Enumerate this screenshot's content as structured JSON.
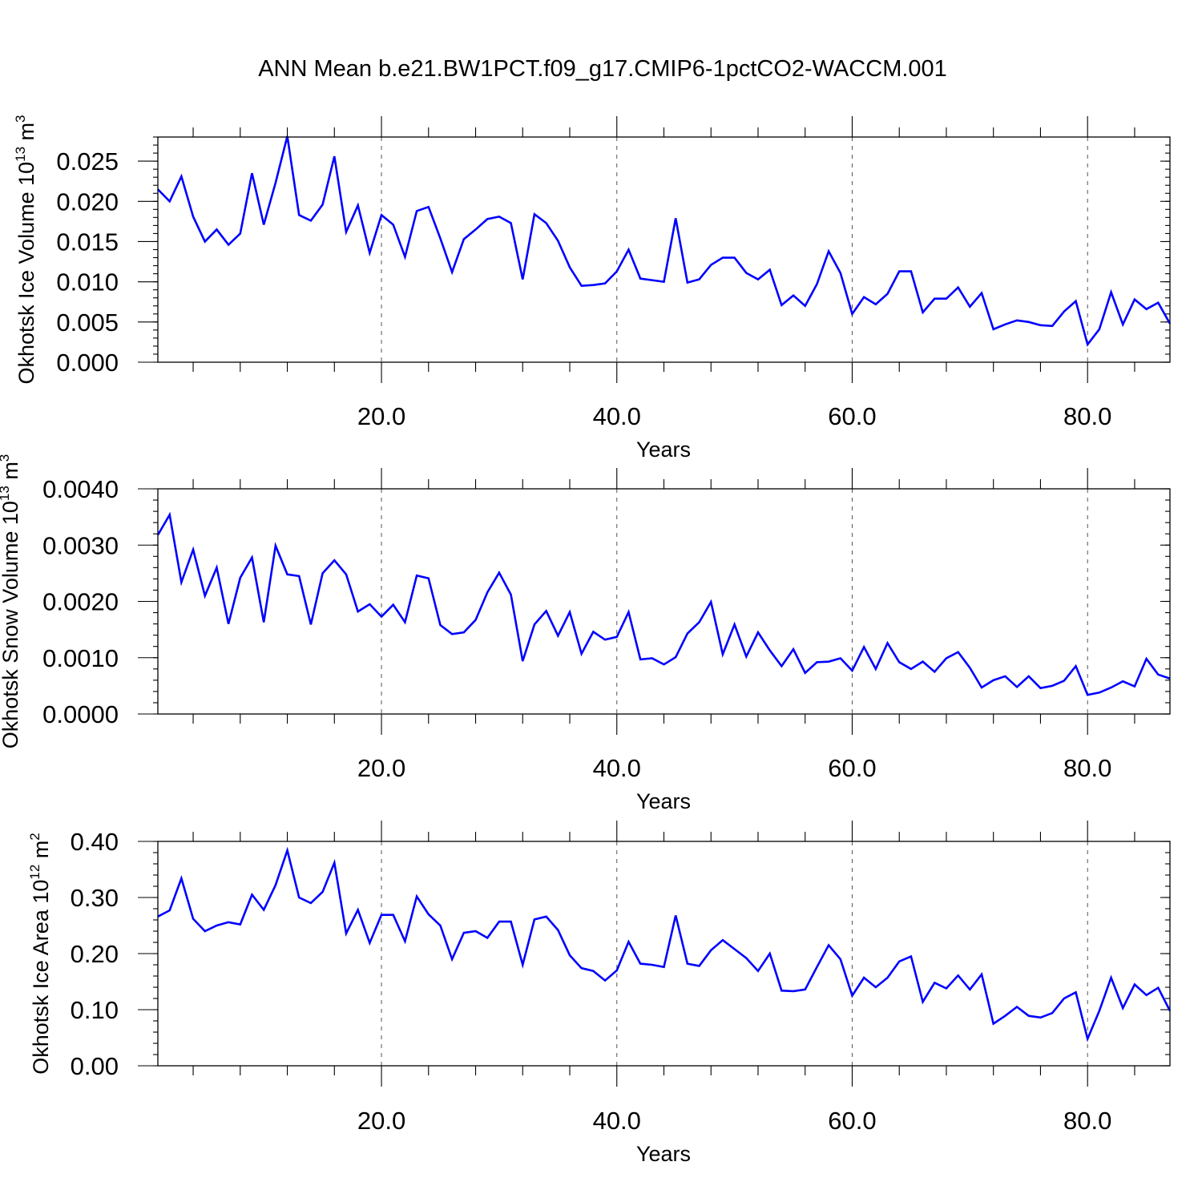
{
  "title": "ANN Mean b.e21.BW1PCT.f09_g17.CMIP6-1pctCO2-WACCM.001",
  "colors": {
    "series": "#0000ff",
    "axes": "#000000",
    "grid": "#555555"
  },
  "chart_data": [
    {
      "type": "line",
      "ylabel_main": "Okhotsk Ice Volume 10",
      "ylabel_exp": "13",
      "ylabel_unit": " m",
      "ylabel_unit_exp": "3",
      "xlabel": "Years",
      "xlim": [
        1,
        87
      ],
      "ylim": [
        0,
        0.028
      ],
      "xticks": [
        20,
        40,
        60,
        80
      ],
      "xtick_labels": [
        "20.0",
        "40.0",
        "60.0",
        "80.0"
      ],
      "xgrid": [
        20,
        40,
        60,
        80
      ],
      "yticks": [
        0,
        0.005,
        0.01,
        0.015,
        0.02,
        0.025
      ],
      "ytick_labels": [
        "0.000",
        "0.005",
        "0.010",
        "0.015",
        "0.020",
        "0.025"
      ],
      "y_minor_step": 0.001,
      "x_minor_step": 4,
      "x": [
        1,
        2,
        3,
        4,
        5,
        6,
        7,
        8,
        9,
        10,
        11,
        12,
        13,
        14,
        15,
        16,
        17,
        18,
        19,
        20,
        21,
        22,
        23,
        24,
        25,
        26,
        27,
        28,
        29,
        30,
        31,
        32,
        33,
        34,
        35,
        36,
        37,
        38,
        39,
        40,
        41,
        42,
        43,
        44,
        45,
        46,
        47,
        48,
        49,
        50,
        51,
        52,
        53,
        54,
        55,
        56,
        57,
        58,
        59,
        60,
        61,
        62,
        63,
        64,
        65,
        66,
        67,
        68,
        69,
        70,
        71,
        72,
        73,
        74,
        75,
        76,
        77,
        78,
        79,
        80,
        81,
        82,
        83,
        84,
        85,
        86,
        87
      ],
      "y": [
        0.0215,
        0.02,
        0.0231,
        0.0181,
        0.015,
        0.0165,
        0.0146,
        0.016,
        0.0235,
        0.0171,
        0.0223,
        0.0281,
        0.0183,
        0.0176,
        0.0196,
        0.0256,
        0.0162,
        0.0195,
        0.0136,
        0.0183,
        0.0171,
        0.0131,
        0.0188,
        0.0193,
        0.0154,
        0.0112,
        0.0153,
        0.0165,
        0.0178,
        0.0181,
        0.0173,
        0.0103,
        0.0184,
        0.0173,
        0.0151,
        0.0118,
        0.0095,
        0.0096,
        0.0098,
        0.0113,
        0.014,
        0.0104,
        0.0102,
        0.01,
        0.0179,
        0.0099,
        0.0103,
        0.0121,
        0.013,
        0.013,
        0.0111,
        0.0103,
        0.0115,
        0.0071,
        0.0083,
        0.007,
        0.0097,
        0.0138,
        0.0111,
        0.006,
        0.0081,
        0.0072,
        0.0085,
        0.0113,
        0.0113,
        0.0062,
        0.0079,
        0.0079,
        0.0093,
        0.0069,
        0.0086,
        0.0041,
        0.0047,
        0.0052,
        0.005,
        0.0046,
        0.0045,
        0.0063,
        0.0076,
        0.0022,
        0.0041,
        0.0087,
        0.0047,
        0.0078,
        0.0066,
        0.0074,
        0.0048
      ]
    },
    {
      "type": "line",
      "ylabel_main": "Okhotsk Snow Volume 10",
      "ylabel_exp": "13",
      "ylabel_unit": " m",
      "ylabel_unit_exp": "3",
      "xlabel": "Years",
      "xlim": [
        1,
        87
      ],
      "ylim": [
        0,
        0.004
      ],
      "xticks": [
        20,
        40,
        60,
        80
      ],
      "xtick_labels": [
        "20.0",
        "40.0",
        "60.0",
        "80.0"
      ],
      "xgrid": [
        20,
        40,
        60,
        80
      ],
      "yticks": [
        0,
        0.001,
        0.002,
        0.003,
        0.004
      ],
      "ytick_labels": [
        "0.0000",
        "0.0010",
        "0.0020",
        "0.0030",
        "0.0040"
      ],
      "y_minor_step": 0.0002,
      "x_minor_step": 4,
      "x": [
        1,
        2,
        3,
        4,
        5,
        6,
        7,
        8,
        9,
        10,
        11,
        12,
        13,
        14,
        15,
        16,
        17,
        18,
        19,
        20,
        21,
        22,
        23,
        24,
        25,
        26,
        27,
        28,
        29,
        30,
        31,
        32,
        33,
        34,
        35,
        36,
        37,
        38,
        39,
        40,
        41,
        42,
        43,
        44,
        45,
        46,
        47,
        48,
        49,
        50,
        51,
        52,
        53,
        54,
        55,
        56,
        57,
        58,
        59,
        60,
        61,
        62,
        63,
        64,
        65,
        66,
        67,
        68,
        69,
        70,
        71,
        72,
        73,
        74,
        75,
        76,
        77,
        78,
        79,
        80,
        81,
        82,
        83,
        84,
        85,
        86,
        87
      ],
      "y": [
        0.00318,
        0.00354,
        0.00234,
        0.00292,
        0.0021,
        0.0026,
        0.0016,
        0.00242,
        0.00278,
        0.00163,
        0.00299,
        0.00248,
        0.00245,
        0.00159,
        0.0025,
        0.00273,
        0.00248,
        0.00182,
        0.00195,
        0.00173,
        0.00194,
        0.00163,
        0.00246,
        0.00241,
        0.00158,
        0.00142,
        0.00145,
        0.00167,
        0.00216,
        0.00251,
        0.00212,
        0.00094,
        0.00159,
        0.00183,
        0.00139,
        0.00181,
        0.00107,
        0.00146,
        0.00132,
        0.00137,
        0.00181,
        0.00097,
        0.00099,
        0.00088,
        0.00101,
        0.00143,
        0.00163,
        0.00199,
        0.00106,
        0.00159,
        0.00102,
        0.00145,
        0.00113,
        0.00085,
        0.00115,
        0.00073,
        0.00092,
        0.00093,
        0.00099,
        0.00077,
        0.00119,
        0.0008,
        0.00126,
        0.00092,
        0.0008,
        0.00093,
        0.00075,
        0.00099,
        0.0011,
        0.00082,
        0.00047,
        0.0006,
        0.00067,
        0.00048,
        0.00067,
        0.00046,
        0.0005,
        0.00059,
        0.00085,
        0.00034,
        0.00038,
        0.00047,
        0.00058,
        0.00049,
        0.00098,
        0.0007,
        0.00063
      ]
    },
    {
      "type": "line",
      "ylabel_main": "Okhotsk Ice Area 10",
      "ylabel_exp": "12",
      "ylabel_unit": " m",
      "ylabel_unit_exp": "2",
      "xlabel": "Years",
      "xlim": [
        1,
        87
      ],
      "ylim": [
        0,
        0.4
      ],
      "xticks": [
        20,
        40,
        60,
        80
      ],
      "xtick_labels": [
        "20.0",
        "40.0",
        "60.0",
        "80.0"
      ],
      "xgrid": [
        20,
        40,
        60,
        80
      ],
      "yticks": [
        0,
        0.1,
        0.2,
        0.3,
        0.4
      ],
      "ytick_labels": [
        "0.00",
        "0.10",
        "0.20",
        "0.30",
        "0.40"
      ],
      "y_minor_step": 0.02,
      "x_minor_step": 4,
      "x": [
        1,
        2,
        3,
        4,
        5,
        6,
        7,
        8,
        9,
        10,
        11,
        12,
        13,
        14,
        15,
        16,
        17,
        18,
        19,
        20,
        21,
        22,
        23,
        24,
        25,
        26,
        27,
        28,
        29,
        30,
        31,
        32,
        33,
        34,
        35,
        36,
        37,
        38,
        39,
        40,
        41,
        42,
        43,
        44,
        45,
        46,
        47,
        48,
        49,
        50,
        51,
        52,
        53,
        54,
        55,
        56,
        57,
        58,
        59,
        60,
        61,
        62,
        63,
        64,
        65,
        66,
        67,
        68,
        69,
        70,
        71,
        72,
        73,
        74,
        75,
        76,
        77,
        78,
        79,
        80,
        81,
        82,
        83,
        84,
        85,
        86,
        87
      ],
      "y": [
        0.266,
        0.277,
        0.334,
        0.262,
        0.24,
        0.25,
        0.256,
        0.252,
        0.305,
        0.278,
        0.322,
        0.384,
        0.3,
        0.29,
        0.31,
        0.362,
        0.236,
        0.278,
        0.219,
        0.269,
        0.269,
        0.222,
        0.302,
        0.27,
        0.25,
        0.19,
        0.237,
        0.24,
        0.228,
        0.257,
        0.257,
        0.18,
        0.261,
        0.266,
        0.242,
        0.197,
        0.174,
        0.169,
        0.152,
        0.17,
        0.221,
        0.182,
        0.18,
        0.176,
        0.268,
        0.182,
        0.178,
        0.206,
        0.224,
        0.208,
        0.192,
        0.169,
        0.2,
        0.134,
        0.133,
        0.136,
        0.176,
        0.215,
        0.19,
        0.125,
        0.157,
        0.14,
        0.157,
        0.186,
        0.195,
        0.114,
        0.148,
        0.138,
        0.161,
        0.136,
        0.163,
        0.075,
        0.089,
        0.105,
        0.089,
        0.086,
        0.094,
        0.12,
        0.131,
        0.048,
        0.098,
        0.157,
        0.103,
        0.145,
        0.126,
        0.139,
        0.098
      ]
    }
  ]
}
